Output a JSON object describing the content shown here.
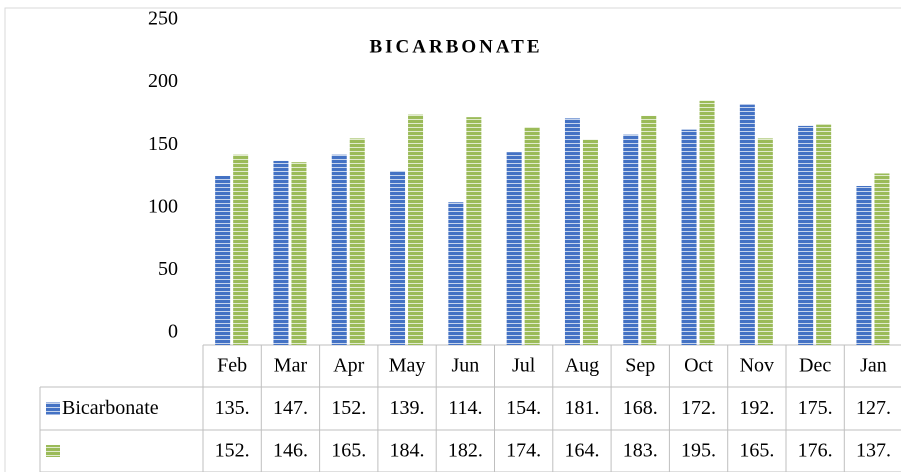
{
  "chart_data": {
    "type": "bar",
    "title": "BICARBONATE",
    "categories": [
      "Feb",
      "Mar",
      "Apr",
      "May",
      "Jun",
      "Jul",
      "Aug",
      "Sep",
      "Oct",
      "Nov",
      "Dec",
      "Jan"
    ],
    "series": [
      {
        "name": "Bicarbonate",
        "color": "#4472c4",
        "values": [
          135,
          147,
          152,
          139,
          114,
          154,
          181,
          168,
          172,
          192,
          175,
          127
        ],
        "value_labels": [
          "135.",
          "147.",
          "152.",
          "139.",
          "114.",
          "154.",
          "181.",
          "168.",
          "172.",
          "192.",
          "175.",
          "127."
        ]
      },
      {
        "color": "#9bbb59",
        "values": [
          152,
          146,
          165,
          184,
          182,
          174,
          164,
          183,
          195,
          165,
          176,
          137
        ],
        "value_labels": [
          "152.",
          "146.",
          "165.",
          "184.",
          "182.",
          "174.",
          "164.",
          "183.",
          "195.",
          "165.",
          "176.",
          "137."
        ]
      }
    ],
    "ylim": [
      0,
      250
    ],
    "yticks": [
      0,
      50,
      100,
      150,
      200,
      250
    ],
    "grid": false
  }
}
